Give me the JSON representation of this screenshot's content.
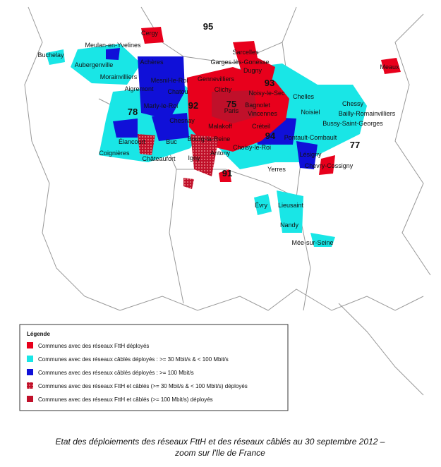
{
  "map": {
    "departments": [
      "95",
      "93",
      "75",
      "92",
      "94",
      "78",
      "77",
      "91"
    ],
    "places": [
      "Cergy",
      "Buchelay",
      "Meulan-en-Yvelines",
      "Aubergenville",
      "Achères",
      "Sarcelles",
      "Garges-lès-Gonesse",
      "Dugny",
      "Meaux",
      "Morainvilliers",
      "Mesnil-le-Roi",
      "Gennevilliers",
      "Aigremont",
      "Chatou",
      "Clichy",
      "Noisy-le-Sec",
      "Chelles",
      "Marly-le-Roi",
      "Paris",
      "Bagnolet",
      "Vincennes",
      "Chessy",
      "Noisiel",
      "Bailly-Romainvilliers",
      "Bussy-Saint-Georges",
      "Chesnay",
      "Créteil",
      "Élancourt",
      "Buc",
      "Bourg-la-Reine",
      "Malakoff",
      "Choisy-le-Roi",
      "Pontault-Combault",
      "Coignières",
      "Châteaufort",
      "Igny",
      "Antony",
      "Lésigny",
      "Chevry-Cossigny",
      "Yerres",
      "Évry",
      "Lieusaint",
      "Nandy",
      "Mée-sur-Seine"
    ]
  },
  "legend": {
    "title": "Légende",
    "items": [
      {
        "label": "Communes avec des réseaux FttH déployés",
        "color": "#e8001c"
      },
      {
        "label": "Communes avec des réseaux câblés déployés : >= 30 Mbit/s & < 100 Mbit/s",
        "color": "#19e6e6"
      },
      {
        "label": "Communes avec des réseaux câblés déployés : >= 100 Mbit/s",
        "color": "#1010d8"
      },
      {
        "label": "Communes avec des réseaux FttH et câblés (>= 30 Mbit/s & < 100 Mbit/s) déployés",
        "color": "#c0102a"
      },
      {
        "label": "Communes avec des réseaux FttH et câblés (>= 100 Mbit/s) déployés",
        "color": "#c0102a"
      }
    ]
  },
  "caption": [
    "Etat des déploiements des réseaux FttH et des réseaux câblés au 30 septembre 2012 –",
    "zoom sur l'Ile de France"
  ]
}
